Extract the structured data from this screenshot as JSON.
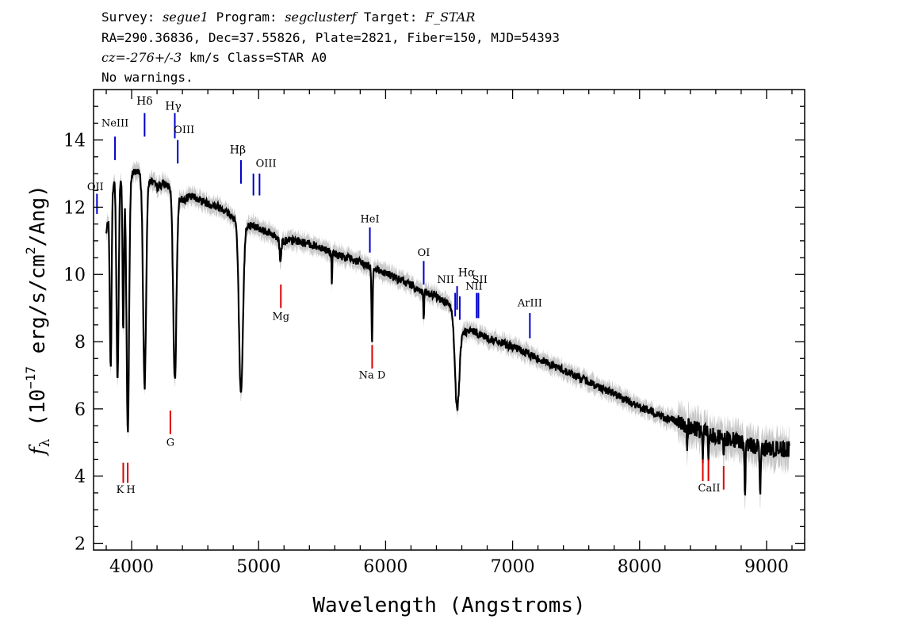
{
  "header": {
    "survey_label": "Survey:",
    "survey": "segue1",
    "program_label": "Program:",
    "program": "segclusterf",
    "target_label": "Target:",
    "target": "F_STAR",
    "line2": "RA=290.36836, Dec=37.55826, Plate=2821, Fiber=150, MJD=54393",
    "cz_value": "cz=-276+/-3",
    "cz_unit_class": "km/s Class=STAR A0",
    "line4": "No warnings."
  },
  "chart_data": {
    "type": "line",
    "xlabel": "Wavelength (Angstroms)",
    "ylabel_f": "f",
    "ylabel_sub": "λ",
    "ylabel_pre": "(10",
    "ylabel_exp": "−17",
    "ylabel_mid": " erg/s/cm",
    "ylabel_exp2": "2",
    "ylabel_post": "/Ang)",
    "xlim": [
      3700,
      9300
    ],
    "ylim": [
      1.8,
      15.5
    ],
    "xticks": [
      4000,
      5000,
      6000,
      7000,
      8000,
      9000
    ],
    "yticks": [
      2,
      4,
      6,
      8,
      10,
      12,
      14
    ],
    "continuum": [
      [
        3800,
        11.2
      ],
      [
        3850,
        12.7
      ],
      [
        3900,
        12.9
      ],
      [
        3950,
        12.7
      ],
      [
        4000,
        13.0
      ],
      [
        4050,
        13.1
      ],
      [
        4100,
        12.6
      ],
      [
        4150,
        12.8
      ],
      [
        4200,
        12.6
      ],
      [
        4250,
        12.7
      ],
      [
        4300,
        12.6
      ],
      [
        4350,
        12.4
      ],
      [
        4400,
        12.2
      ],
      [
        4450,
        12.3
      ],
      [
        4500,
        12.3
      ],
      [
        4600,
        12.1
      ],
      [
        4700,
        12.0
      ],
      [
        4800,
        11.7
      ],
      [
        4900,
        11.5
      ],
      [
        5000,
        11.4
      ],
      [
        5100,
        11.2
      ],
      [
        5200,
        11.0
      ],
      [
        5300,
        11.0
      ],
      [
        5400,
        10.9
      ],
      [
        5500,
        10.8
      ],
      [
        5600,
        10.6
      ],
      [
        5700,
        10.5
      ],
      [
        5800,
        10.35
      ],
      [
        5900,
        10.2
      ],
      [
        6000,
        10.05
      ],
      [
        6100,
        9.85
      ],
      [
        6200,
        9.7
      ],
      [
        6300,
        9.45
      ],
      [
        6400,
        9.35
      ],
      [
        6500,
        9.1
      ],
      [
        6600,
        8.3
      ],
      [
        6700,
        8.3
      ],
      [
        6800,
        8.1
      ],
      [
        7000,
        7.85
      ],
      [
        7200,
        7.5
      ],
      [
        7400,
        7.15
      ],
      [
        7600,
        6.8
      ],
      [
        7800,
        6.45
      ],
      [
        8000,
        6.05
      ],
      [
        8200,
        5.75
      ],
      [
        8400,
        5.45
      ],
      [
        8600,
        5.2
      ],
      [
        8800,
        5.0
      ],
      [
        9000,
        4.8
      ],
      [
        9180,
        4.8
      ]
    ],
    "absorption": [
      {
        "x": 3835,
        "depth": 5.0,
        "w": 10
      },
      {
        "x": 3889,
        "depth": 6.0,
        "w": 12
      },
      {
        "x": 3934,
        "depth": 4.5,
        "w": 8
      },
      {
        "x": 3970,
        "depth": 7.5,
        "w": 14
      },
      {
        "x": 4102,
        "depth": 6.0,
        "w": 16
      },
      {
        "x": 4340,
        "depth": 5.6,
        "w": 18
      },
      {
        "x": 4861,
        "depth": 5.2,
        "w": 22
      },
      {
        "x": 5172,
        "depth": 0.6,
        "w": 10
      },
      {
        "x": 5577,
        "depth": 1.0,
        "w": 4
      },
      {
        "x": 5893,
        "depth": 2.3,
        "w": 6
      },
      {
        "x": 6300,
        "depth": 0.8,
        "w": 4
      },
      {
        "x": 6563,
        "depth": 2.6,
        "w": 24
      },
      {
        "x": 8375,
        "depth": 0.8,
        "w": 4
      },
      {
        "x": 8498,
        "depth": 0.7,
        "w": 4
      },
      {
        "x": 8542,
        "depth": 0.8,
        "w": 4
      },
      {
        "x": 8662,
        "depth": 0.8,
        "w": 4
      },
      {
        "x": 8830,
        "depth": 1.5,
        "w": 6
      },
      {
        "x": 8950,
        "depth": 1.2,
        "w": 6
      }
    ],
    "lines_blue": [
      {
        "label": "OII",
        "x": 3727,
        "y1": 11.8,
        "y2": 12.4,
        "lab_y": 12.5,
        "lab_dx": -2,
        "bold": false
      },
      {
        "label": "NeIII",
        "x": 3869,
        "y1": 13.4,
        "y2": 14.1,
        "lab_y": 14.4,
        "lab_dx": 0,
        "bold": false
      },
      {
        "label": "Hδ",
        "x": 4102,
        "y1": 14.1,
        "y2": 14.8,
        "lab_y": 15.05,
        "lab_dx": 0,
        "bold": true
      },
      {
        "label": "Hγ",
        "x": 4340,
        "y1": 14.05,
        "y2": 14.8,
        "lab_y": 14.9,
        "lab_dx": -2,
        "bold": true
      },
      {
        "label": "OIII",
        "x": 4363,
        "y1": 13.3,
        "y2": 14.0,
        "lab_y": 14.2,
        "lab_dx": 8,
        "bold": false
      },
      {
        "label": "Hβ",
        "x": 4861,
        "y1": 12.7,
        "y2": 13.4,
        "lab_y": 13.6,
        "lab_dx": -4,
        "bold": true
      },
      {
        "label": "OIII",
        "x": 4959,
        "y1": 12.35,
        "y2": 13.0,
        "lab_y": 13.2,
        "lab_dx": 16,
        "bold": false
      },
      {
        "label": "",
        "x": 5007,
        "y1": 12.35,
        "y2": 13.0,
        "lab_y": 0,
        "lab_dx": 0,
        "bold": false
      },
      {
        "label": "HeI",
        "x": 5876,
        "y1": 10.65,
        "y2": 11.4,
        "lab_y": 11.55,
        "lab_dx": 0,
        "bold": false
      },
      {
        "label": "OI",
        "x": 6300,
        "y1": 9.7,
        "y2": 10.4,
        "lab_y": 10.55,
        "lab_dx": 0,
        "bold": false
      },
      {
        "label": "NII",
        "x": 6548,
        "y1": 8.75,
        "y2": 9.45,
        "lab_y": 9.75,
        "lab_dx": -12,
        "bold": false
      },
      {
        "label": "Hα",
        "x": 6563,
        "y1": 8.95,
        "y2": 9.65,
        "lab_y": 9.95,
        "lab_dx": 12,
        "bold": true
      },
      {
        "label": "NII",
        "x": 6584,
        "y1": 8.65,
        "y2": 9.35,
        "lab_y": 9.55,
        "lab_dx": 18,
        "bold": false
      },
      {
        "label": "SII",
        "x": 6717,
        "y1": 8.7,
        "y2": 9.45,
        "lab_y": 9.75,
        "lab_dx": 4,
        "bold": false
      },
      {
        "label": "",
        "x": 6731,
        "y1": 8.7,
        "y2": 9.45,
        "lab_y": 0,
        "lab_dx": 0,
        "bold": false
      },
      {
        "label": "ArIII",
        "x": 7136,
        "y1": 8.1,
        "y2": 8.85,
        "lab_y": 9.05,
        "lab_dx": 0,
        "bold": false
      }
    ],
    "lines_red": [
      {
        "label": "K",
        "x": 3934,
        "y1": 3.8,
        "y2": 4.4,
        "lab_y": 3.5,
        "lab_dx": -4
      },
      {
        "label": "H",
        "x": 3969,
        "y1": 3.8,
        "y2": 4.4,
        "lab_y": 3.5,
        "lab_dx": 4
      },
      {
        "label": "G",
        "x": 4305,
        "y1": 5.25,
        "y2": 5.95,
        "lab_y": 4.9,
        "lab_dx": 0
      },
      {
        "label": "Mg",
        "x": 5175,
        "y1": 9.0,
        "y2": 9.7,
        "lab_y": 8.65,
        "lab_dx": 0
      },
      {
        "label": "Na D",
        "x": 5894,
        "y1": 7.2,
        "y2": 7.9,
        "lab_y": 6.9,
        "lab_dx": 0
      },
      {
        "label": "CaII",
        "x": 8498,
        "y1": 3.85,
        "y2": 4.5,
        "lab_y": 3.55,
        "lab_dx": 8
      },
      {
        "label": "",
        "x": 8542,
        "y1": 3.85,
        "y2": 4.5,
        "lab_y": 0,
        "lab_dx": 0
      },
      {
        "label": "",
        "x": 8662,
        "y1": 3.6,
        "y2": 4.3,
        "lab_y": 0,
        "lab_dx": 0
      }
    ]
  }
}
